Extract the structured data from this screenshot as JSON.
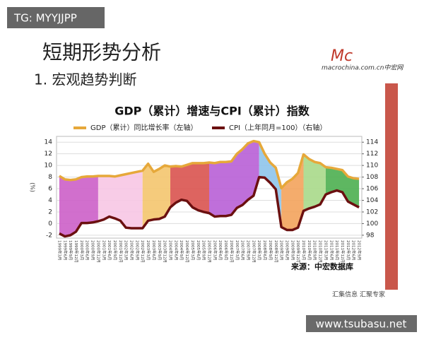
{
  "watermark": "TG: MYYJJPP",
  "slide_title": "短期形势分析",
  "subtitle": "1. 宏观趋势判断",
  "logo": {
    "mark": "Mc",
    "text": "macrochina.com.cn中宏网"
  },
  "footer": "汇集信息 汇聚专家",
  "site": "www.tsubasu.net",
  "chart_data": {
    "type": "line",
    "title": "GDP（累计）增速与CPI（累计）指数",
    "ylabel": "(%)",
    "source": "来源：中宏数据库",
    "categories": [
      "1999年3月",
      "1999年6月",
      "1999年9月",
      "1999年12月",
      "2000年3月",
      "2000年6月",
      "2000年9月",
      "2000年12月",
      "2001年3月",
      "2001年6月",
      "2001年9月",
      "2001年12月",
      "2002年3月",
      "2002年6月",
      "2002年9月",
      "2002年12月",
      "2003年3月",
      "2003年6月",
      "2003年9月",
      "2003年12月",
      "2004年3月",
      "2004年6月",
      "2004年9月",
      "2004年12月",
      "2005年3月",
      "2005年6月",
      "2005年9月",
      "2005年12月",
      "2006年3月",
      "2006年6月",
      "2006年9月",
      "2006年12月",
      "2007年3月",
      "2007年6月",
      "2007年9月",
      "2007年12月",
      "2008年3月",
      "2008年6月",
      "2008年9月",
      "2008年12月",
      "2009年3月",
      "2009年6月",
      "2009年9月",
      "2009年12月",
      "2010年3月",
      "2010年6月",
      "2010年9月",
      "2010年12月",
      "2011年3月",
      "2011年6月",
      "2011年9月",
      "2011年12月",
      "2012年3月",
      "2012年6月",
      "2012年9月"
    ],
    "series": [
      {
        "name": "GDP（累计）同比增长率（左轴）",
        "color": "#e6a83a",
        "values": [
          8.2,
          7.6,
          7.5,
          7.6,
          8.0,
          8.1,
          8.1,
          8.2,
          8.2,
          8.2,
          8.1,
          8.3,
          8.5,
          8.7,
          8.9,
          9.1,
          10.3,
          8.9,
          9.4,
          10.0,
          9.8,
          9.9,
          9.8,
          10.1,
          10.4,
          10.4,
          10.4,
          10.5,
          10.4,
          10.6,
          10.6,
          10.7,
          12.0,
          12.8,
          13.8,
          14.2,
          14.0,
          12.0,
          10.5,
          9.6,
          6.1,
          7.1,
          7.7,
          8.7,
          11.9,
          11.1,
          10.6,
          10.4,
          9.7,
          9.6,
          9.4,
          9.2,
          8.1,
          7.8,
          7.7
        ]
      },
      {
        "name": "CPI（上年同月=100）（右轴）",
        "color": "#6b1010",
        "axis": "y2",
        "values": [
          98.3,
          97.8,
          98.0,
          98.6,
          100.1,
          100.1,
          100.2,
          100.4,
          100.7,
          101.2,
          100.9,
          100.5,
          99.3,
          99.2,
          99.2,
          99.2,
          100.5,
          100.7,
          100.8,
          101.2,
          102.8,
          103.6,
          104.1,
          103.9,
          102.8,
          102.3,
          102.0,
          101.8,
          101.2,
          101.3,
          101.3,
          101.5,
          102.7,
          103.2,
          104.1,
          104.8,
          108.0,
          107.9,
          107.0,
          105.9,
          99.4,
          98.9,
          98.9,
          99.3,
          102.2,
          102.6,
          102.9,
          103.3,
          105.0,
          105.4,
          105.7,
          105.4,
          103.8,
          103.3,
          102.8
        ]
      }
    ],
    "fills": [
      {
        "from": 0,
        "to": 7,
        "color": "#cc5fc8"
      },
      {
        "from": 7,
        "to": 15,
        "color": "#f7c6e4"
      },
      {
        "from": 15,
        "to": 20,
        "color": "#f4c56e"
      },
      {
        "from": 20,
        "to": 27,
        "color": "#d9534f"
      },
      {
        "from": 27,
        "to": 36,
        "color": "#b85fd6"
      },
      {
        "from": 36,
        "to": 40,
        "color": "#8ec4ea"
      },
      {
        "from": 40,
        "to": 44,
        "color": "#f3a35c"
      },
      {
        "from": 44,
        "to": 48,
        "color": "#a9d98a"
      },
      {
        "from": 48,
        "to": 54,
        "color": "#4caf50"
      }
    ],
    "ylim": [
      -2.5,
      15
    ],
    "yticks": [
      -2,
      0,
      2,
      4,
      6,
      8,
      10,
      12,
      14
    ],
    "y2lim": [
      97.5,
      115
    ],
    "y2ticks": [
      98,
      100,
      102,
      104,
      106,
      108,
      110,
      112,
      114
    ],
    "grid": true
  }
}
